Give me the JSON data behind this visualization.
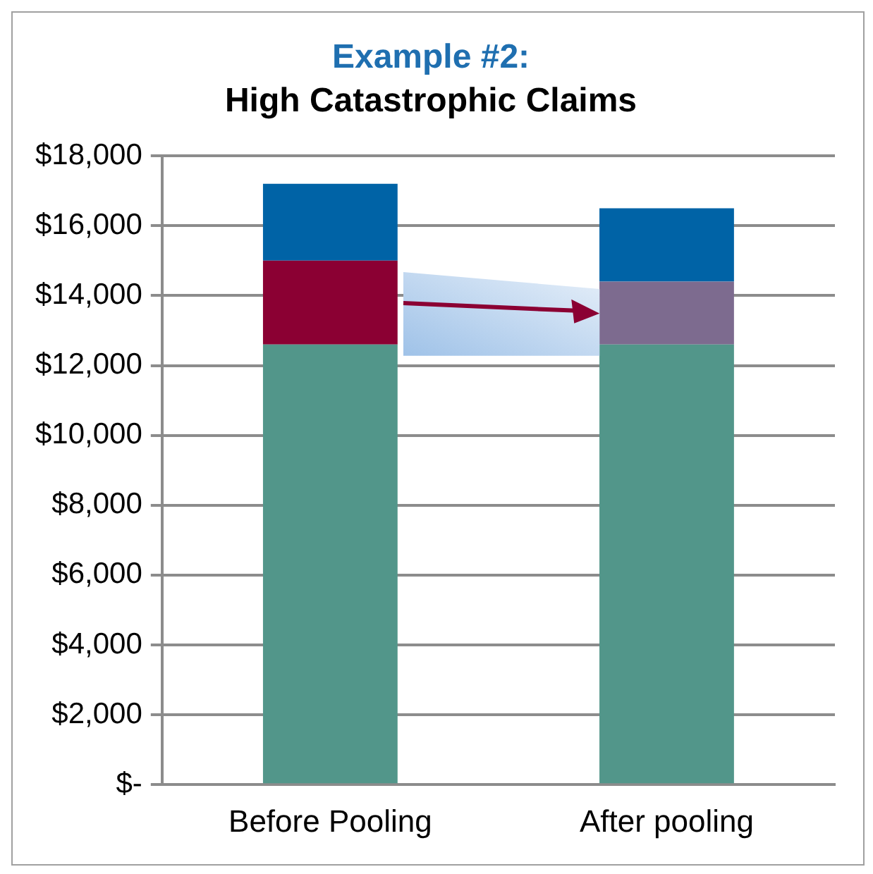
{
  "chart_data": {
    "type": "bar",
    "title": "Example #2:",
    "subtitle": "High Catastrophic Claims",
    "categories": [
      "Before Pooling",
      "After pooling"
    ],
    "stacked": true,
    "series": [
      {
        "color": "#52968a",
        "values": [
          12600,
          12600
        ]
      },
      {
        "colors": [
          "#8b0033",
          "#7d6b8f"
        ],
        "values": [
          2400,
          1800
        ]
      },
      {
        "color": "#0063a6",
        "values": [
          2200,
          2100
        ]
      }
    ],
    "ylim": [
      0,
      18000
    ],
    "yticks": [
      {
        "value": 0,
        "label": "$-"
      },
      {
        "value": 2000,
        "label": "$2,000"
      },
      {
        "value": 4000,
        "label": "$4,000"
      },
      {
        "value": 6000,
        "label": "$6,000"
      },
      {
        "value": 8000,
        "label": "$8,000"
      },
      {
        "value": 10000,
        "label": "$10,000"
      },
      {
        "value": 12000,
        "label": "$12,000"
      },
      {
        "value": 14000,
        "label": "$14,000"
      },
      {
        "value": 16000,
        "label": "$16,000"
      },
      {
        "value": 18000,
        "label": "$18,000"
      }
    ],
    "grid": "y",
    "legend": false
  }
}
